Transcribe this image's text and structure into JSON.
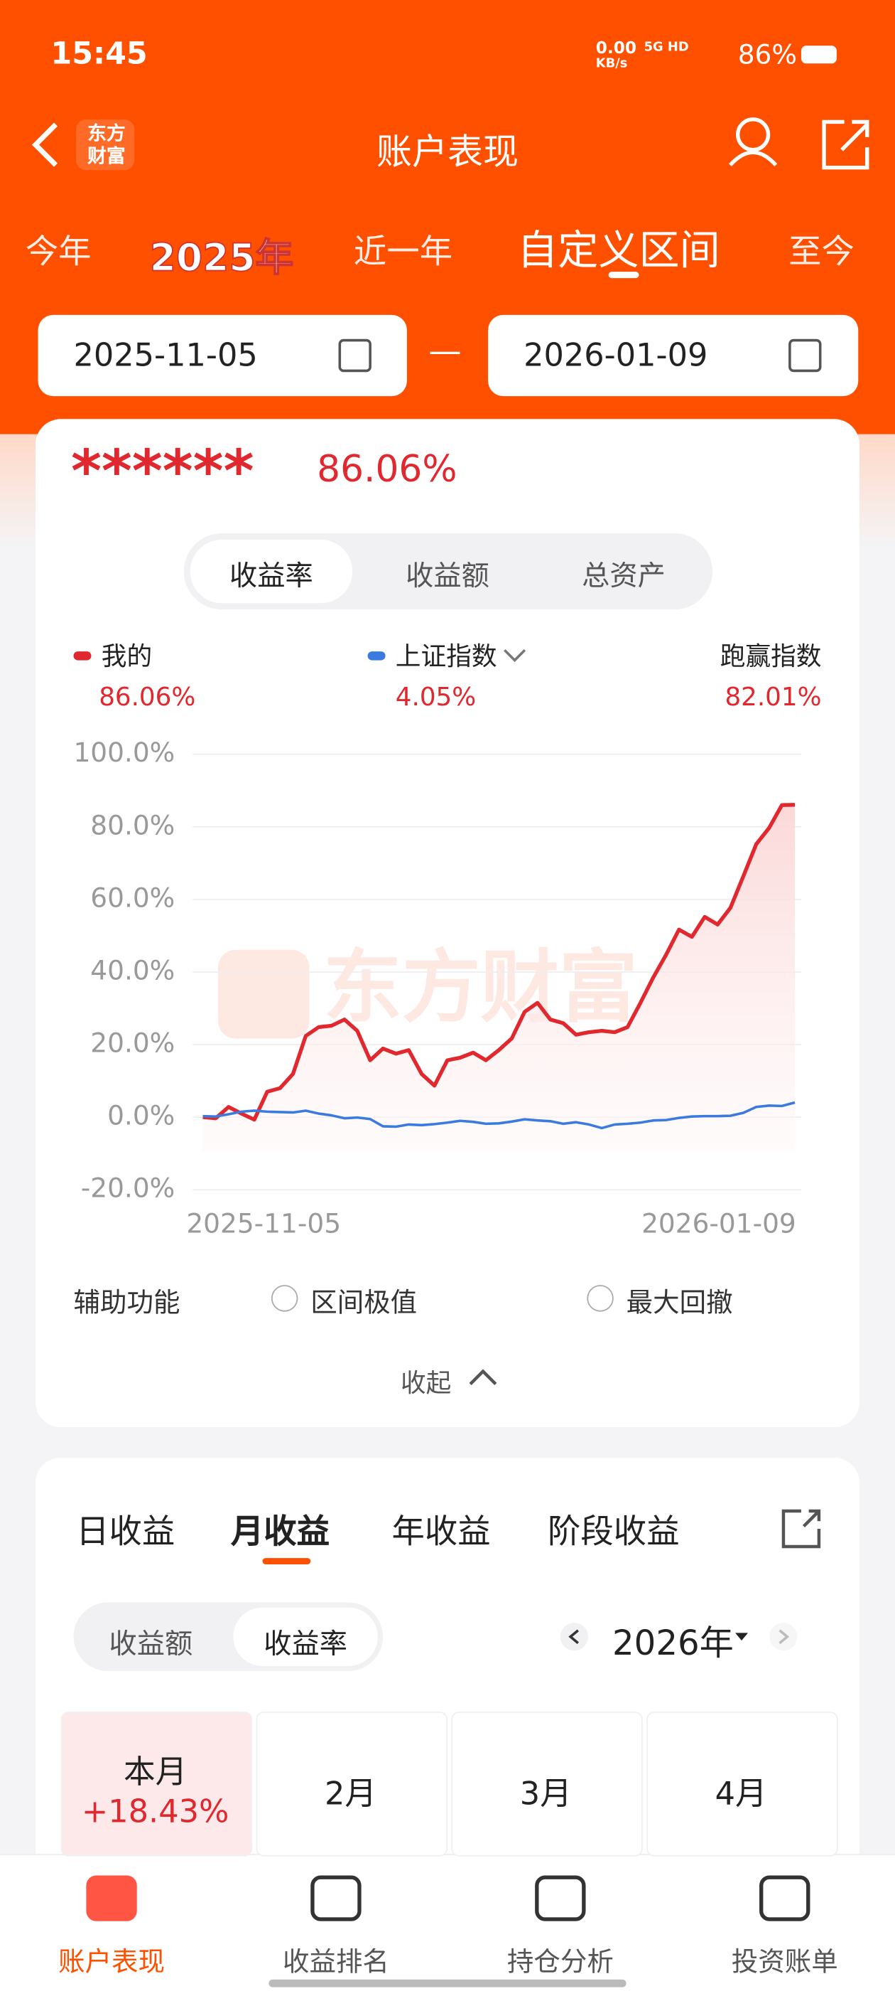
{
  "status_bar": {
    "time": "15:45",
    "net_speed": "0.00",
    "net_unit": "KB/s",
    "network": "5G HD",
    "battery": "86%"
  },
  "header": {
    "logo": "东方财富",
    "title": "账户表现"
  },
  "period_tabs": [
    "今年",
    "2025年",
    "近一年",
    "自定义区间",
    "至今"
  ],
  "selected_period": 3,
  "date_range": {
    "start": "2025-11-05",
    "separator": "—",
    "end": "2026-01-09"
  },
  "summary": {
    "masked": "******",
    "return": "86.06%"
  },
  "metric_tabs": [
    "收益率",
    "收益额",
    "总资产"
  ],
  "selected_metric": 0,
  "chart_data": {
    "type": "line",
    "watermark": "东方财富",
    "categories": [
      "2025-11-05",
      null,
      null,
      null,
      null,
      null,
      null,
      null,
      null,
      null,
      null,
      null,
      null,
      null,
      null,
      null,
      null,
      null,
      null,
      null,
      null,
      null,
      null,
      null,
      null,
      null,
      null,
      null,
      null,
      null,
      null,
      null,
      null,
      null,
      null,
      null,
      null,
      null,
      null,
      null,
      null,
      null,
      null,
      null,
      null,
      null,
      "2026-01-09"
    ],
    "series": [
      {
        "name": "我的",
        "color": "#e0282e",
        "latest_label": "86.06%",
        "values": [
          0,
          -0.3,
          2.8,
          1.0,
          -0.7,
          7.0,
          8.0,
          11.9,
          22.4,
          24.8,
          25.2,
          26.9,
          23.8,
          15.7,
          18.9,
          17.5,
          18.5,
          11.9,
          8.7,
          15.7,
          16.4,
          17.8,
          15.7,
          18.5,
          21.7,
          29.0,
          31.5,
          26.9,
          25.9,
          22.7,
          23.4,
          23.8,
          23.4,
          24.8,
          31.5,
          38.5,
          44.8,
          51.7,
          49.7,
          55.2,
          53.1,
          57.7,
          66.4,
          75.2,
          79.7,
          86.0,
          86.06
        ]
      },
      {
        "name": "上证指数",
        "color": "#3b7be0",
        "latest_label": "4.05%",
        "values": [
          0.3,
          0.2,
          0.8,
          1.5,
          1.8,
          1.5,
          1.4,
          1.3,
          1.8,
          1.0,
          0.5,
          -0.3,
          -0.1,
          -0.5,
          -2.5,
          -2.6,
          -2.0,
          -2.2,
          -1.9,
          -1.5,
          -1.0,
          -1.3,
          -1.8,
          -1.7,
          -1.2,
          -0.6,
          -0.9,
          -1.1,
          -1.8,
          -1.4,
          -2.0,
          -3.0,
          -2.0,
          -1.8,
          -1.5,
          -0.9,
          -0.8,
          -0.2,
          0.2,
          0.3,
          0.3,
          0.4,
          1.2,
          2.8,
          3.2,
          3.1,
          4.05
        ]
      }
    ],
    "excess": {
      "name": "跑赢指数",
      "label": "82.01%"
    },
    "ylim": [
      -20,
      100
    ],
    "yticks": [
      {
        "value": 100,
        "label": "100.0%"
      },
      {
        "value": 80,
        "label": "80.0%"
      },
      {
        "value": 60,
        "label": "60.0%"
      },
      {
        "value": 40,
        "label": "40.0%"
      },
      {
        "value": 20,
        "label": "20.0%"
      },
      {
        "value": 0,
        "label": "0.0%"
      },
      {
        "value": -20,
        "label": "-20.0%"
      }
    ],
    "grid": true
  },
  "tools": {
    "label": "辅助功能",
    "options": [
      "区间极值",
      "最大回撤"
    ]
  },
  "collapse": "收起",
  "returns": {
    "tabs": [
      "日收益",
      "月收益",
      "年收益",
      "阶段收益"
    ],
    "selected": 1,
    "modes": [
      "收益额",
      "收益率"
    ],
    "selected_mode": 1,
    "year": "2026年",
    "months": [
      {
        "label": "本月",
        "value": "+18.43%"
      },
      {
        "label": "2月"
      },
      {
        "label": "3月"
      },
      {
        "label": "4月"
      }
    ]
  },
  "bottom_nav": [
    "账户表现",
    "收益排名",
    "持仓分析",
    "投资账单"
  ],
  "selected_nav": 0
}
